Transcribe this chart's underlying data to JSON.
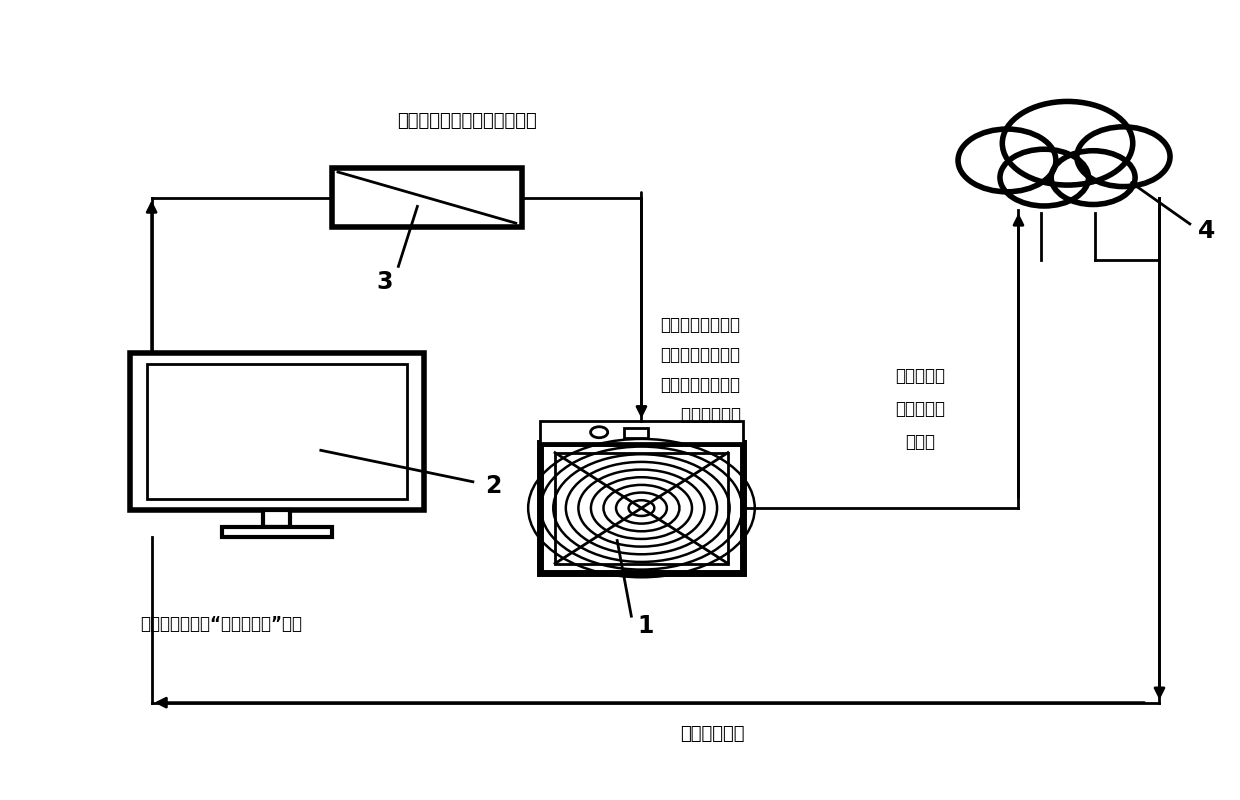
{
  "bg_color": "#ffffff",
  "line_color": "#000000",
  "line_width": 2.0,
  "font_size_label": 12,
  "font_size_number": 14,
  "top_text": "任务发送到企业级监控服务器",
  "monitor_desc_1": "企业级监控服务器",
  "monitor_desc_2": "监听到新矿机的上",
  "monitor_desc_3": "架，将目标矿池配",
  "monitor_desc_4": "    置发送给矿机",
  "bottom_left_text": "管理系统上开启“上架即挖矿”任务",
  "bottom_text": "发送修改结果",
  "right_text_1": "然后将结果",
  "right_text_2": "上报到云端",
  "right_text_3": "服务器",
  "label_1": "1",
  "label_2": "2",
  "label_3": "3",
  "label_4": "4"
}
